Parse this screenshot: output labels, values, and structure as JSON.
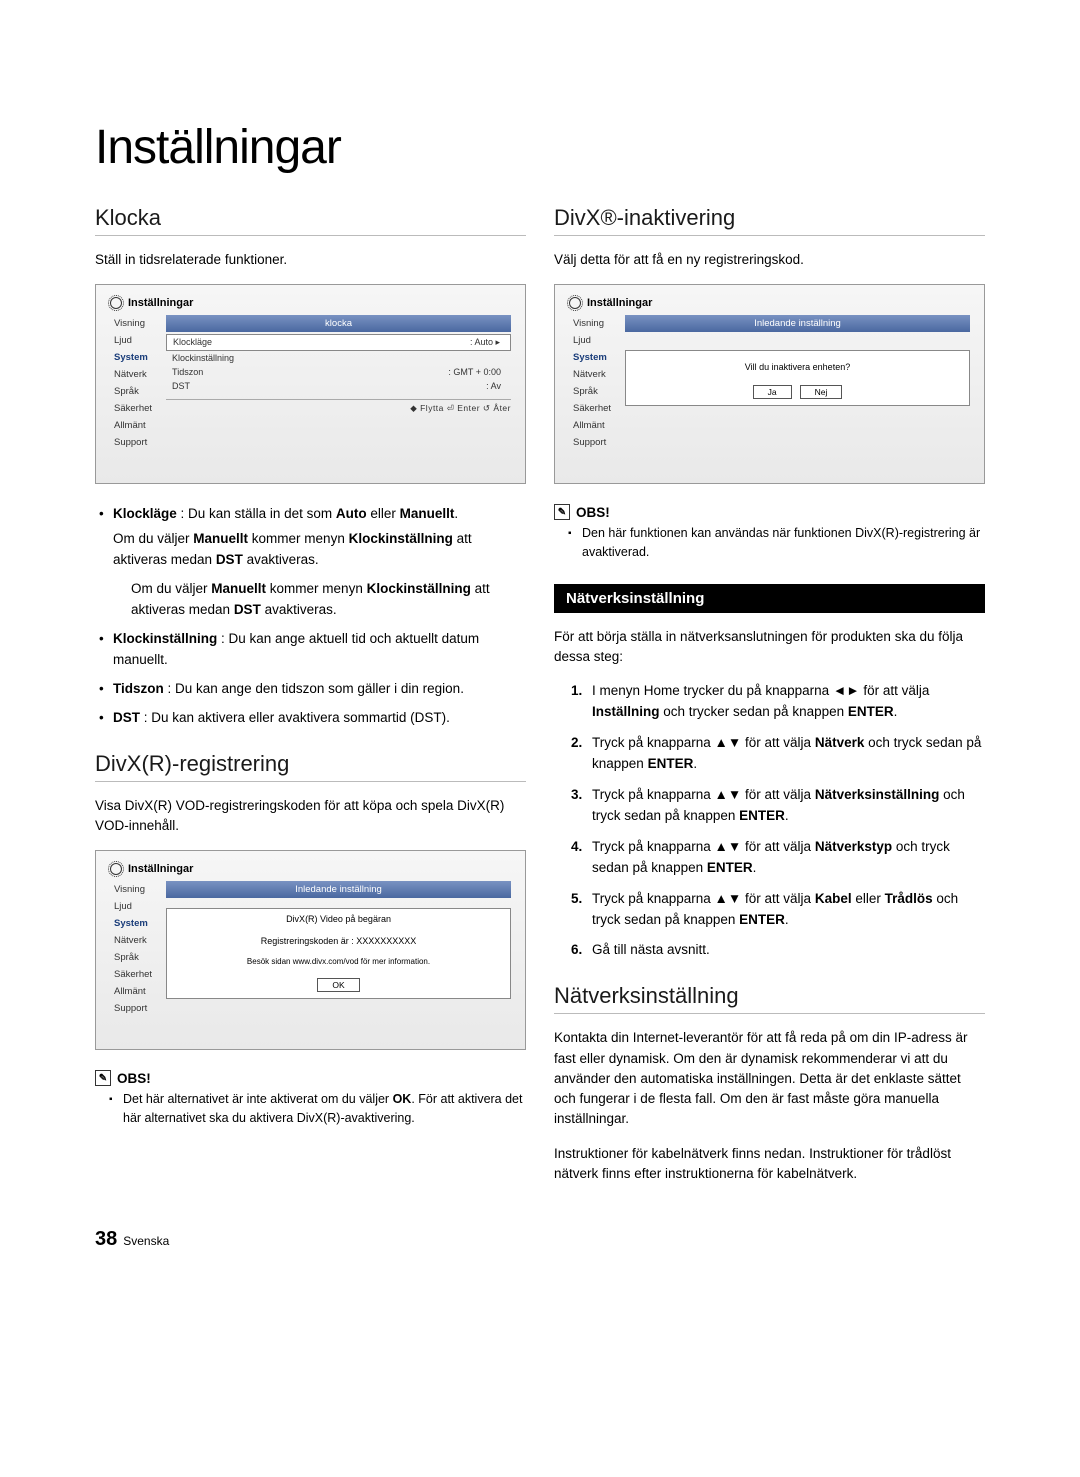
{
  "title": "Inställningar",
  "left": {
    "klocka": {
      "heading": "Klocka",
      "intro": "Ställ in tidsrelaterade funktioner.",
      "shot": {
        "hdr": "Inställningar",
        "sidebar": [
          "Visning",
          "Ljud",
          "System",
          "Nätverk",
          "Språk",
          "Säkerhet",
          "Allmänt",
          "Support"
        ],
        "tab": "klocka",
        "rows": [
          {
            "l": "Klockläge",
            "r": ": Auto",
            "boxed": true,
            "arrow": "▸"
          },
          {
            "l": "Klockinställning",
            "r": ""
          },
          {
            "l": "Tidszon",
            "r": ": GMT + 0:00"
          },
          {
            "l": "DST",
            "r": ": Av"
          }
        ],
        "nav": "◆ Flytta    ⏎ Enter    ↺ Åter"
      },
      "bullets": [
        "<b>Klockläge</b> : Du kan ställa in det som <b>Auto</b> eller <b>Manuellt</b>.",
        "<b>Klockinställning</b> : Du kan ange aktuell tid och aktuellt datum manuellt.",
        "<b>Tidszon</b> : Du kan ange den tidszon som gäller i din region.",
        "<b>DST</b> : Du kan aktivera eller avaktivera sommartid (DST)."
      ],
      "sub": "Om du väljer <b>Manuellt</b> kommer menyn <b>Klockinställning</b> att aktiveras medan <b>DST</b> avaktiveras."
    },
    "divx_reg": {
      "heading": "DivX(R)-registrering",
      "intro": "Visa DivX(R) VOD-registreringskoden för att köpa och spela DivX(R) VOD-innehåll.",
      "shot": {
        "hdr": "Inställningar",
        "sidebar": [
          "Visning",
          "Ljud",
          "System",
          "Nätverk",
          "Språk",
          "Säkerhet",
          "Allmänt",
          "Support"
        ],
        "tab": "Inledande inställning",
        "line1": "DivX(R) Video på begäran",
        "line2": "Registreringskoden är : XXXXXXXXXX",
        "line3": "Besök sidan www.divx.com/vod för mer information.",
        "btn": "OK"
      },
      "note_label": "OBS!",
      "note": "Det här alternativet är inte aktiverat om du väljer <b>OK</b>. För att aktivera det här alternativet ska du aktivera DivX(R)-avaktivering."
    }
  },
  "right": {
    "divx_deact": {
      "heading": "DivX®-inaktivering",
      "intro": "Välj detta för att få en ny registreringskod.",
      "shot": {
        "hdr": "Inställningar",
        "sidebar": [
          "Visning",
          "Ljud",
          "System",
          "Nätverk",
          "Språk",
          "Säkerhet",
          "Allmänt",
          "Support"
        ],
        "tab": "Inledande inställning",
        "q": "Vill du inaktivera enheten?",
        "yes": "Ja",
        "no": "Nej"
      },
      "note_label": "OBS!",
      "note": "Den här funktionen kan användas när funktionen DivX(R)-registrering är avaktiverad."
    },
    "net_bar": "Nätverksinställning",
    "net_intro": "För att börja ställa in nätverksanslutningen för produkten ska du följa dessa steg:",
    "steps": [
      "I menyn Home trycker du på knapparna ◄► för att välja <b>Inställning</b> och trycker sedan på knappen <b>ENTER</b>.",
      "Tryck på knapparna ▲▼ för att välja <b>Nätverk</b> och tryck sedan på knappen <b>ENTER</b>.",
      "Tryck på knapparna ▲▼ för att välja <b>Nätverksinställning</b> och tryck sedan på knappen <b>ENTER</b>.",
      "Tryck på knapparna ▲▼ för att välja <b>Nätverkstyp</b> och tryck sedan på knappen <b>ENTER</b>.",
      "Tryck på knapparna ▲▼ för att välja <b>Kabel</b> eller <b>Trådlös</b> och tryck sedan på knappen <b>ENTER</b>.",
      "Gå till nästa avsnitt."
    ],
    "net2": {
      "heading": "Nätverksinställning",
      "p1": "Kontakta din Internet-leverantör för att få reda på om din IP-adress är fast eller dynamisk. Om den är dynamisk rekommenderar vi att du använder den automatiska inställningen. Detta är det enklaste sättet och fungerar i de flesta fall. Om den är fast måste göra manuella inställningar.",
      "p2": "Instruktioner för kabelnätverk finns nedan. Instruktioner för trådlöst nätverk finns efter instruktionerna för kabelnätverk."
    }
  },
  "footer": {
    "num": "38",
    "lang": "Svenska"
  }
}
